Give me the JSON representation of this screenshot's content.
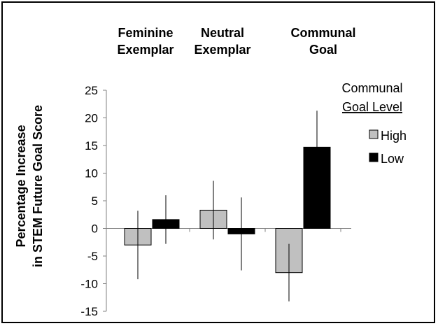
{
  "chart_data": {
    "type": "bar",
    "title": "",
    "categories": [
      [
        "Feminine",
        "Exemplar"
      ],
      [
        "Neutral",
        "Exemplar"
      ],
      [
        "Communal",
        "Goal"
      ]
    ],
    "ylabel": [
      "Percentage Increase",
      "in STEM Future Goal Score"
    ],
    "ylim": [
      -15,
      25
    ],
    "yticks": [
      25,
      20,
      15,
      10,
      5,
      0,
      -5,
      -10,
      -15
    ],
    "legend": {
      "title_line1": "Communal",
      "title_line2": "Goal Level",
      "placement": "right"
    },
    "series": [
      {
        "name": "High",
        "color": "#c0c0c0",
        "values": [
          -3.0,
          3.3,
          -8.0
        ],
        "error": [
          6.2,
          5.3,
          5.2
        ]
      },
      {
        "name": "Low",
        "color": "#000000",
        "values": [
          1.6,
          -1.0,
          14.7
        ],
        "error": [
          4.4,
          6.6,
          6.6
        ]
      }
    ],
    "grid": false
  }
}
